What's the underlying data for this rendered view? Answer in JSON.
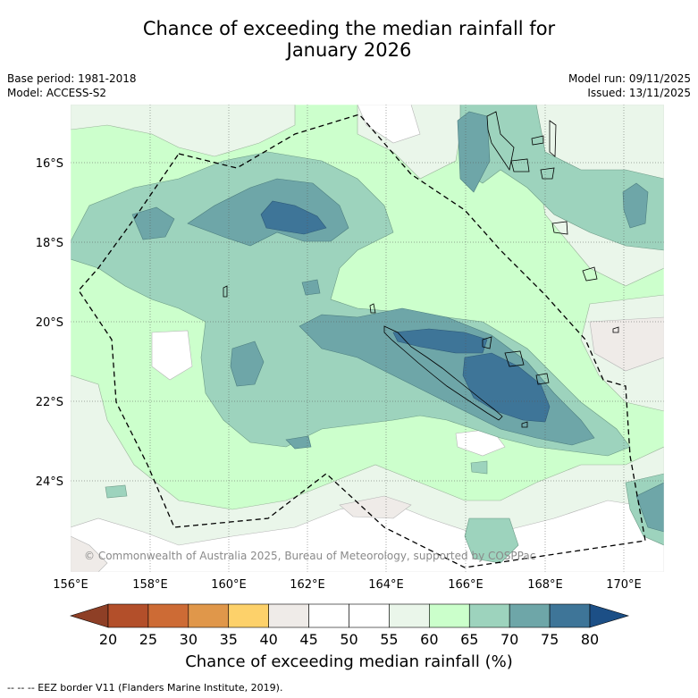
{
  "title_line1": "Chance of exceeding the median rainfall for",
  "title_line2": "January 2026",
  "left_meta": {
    "base_period": "Base period: 1981-2018",
    "model": "Model: ACCESS-S2"
  },
  "right_meta": {
    "model_run": "Model run: 09/11/2025",
    "issued": "Issued: 13/11/2025"
  },
  "credit": "© Commonwealth of Australia 2025, Bureau of Meteorology, supported by COSPPac",
  "lat_labels": [
    "16°S",
    "18°S",
    "20°S",
    "22°S",
    "24°S"
  ],
  "lon_labels": [
    "156°E",
    "158°E",
    "160°E",
    "162°E",
    "164°E",
    "166°E",
    "168°E",
    "170°E"
  ],
  "colorbar": {
    "label": "Chance of exceeding median rainfall (%)",
    "ticks": [
      "20",
      "25",
      "30",
      "35",
      "40",
      "45",
      "50",
      "55",
      "60",
      "65",
      "70",
      "75",
      "80"
    ],
    "colors": [
      "#8e3f26",
      "#b34f2a",
      "#cd6b35",
      "#e0974a",
      "#fdd16a",
      "#efebe8",
      "#ffffff",
      "#ffffff",
      "#eaf6ea",
      "#cbffcb",
      "#9dd3bd",
      "#6ea6a8",
      "#3e7598",
      "#1c4f86"
    ]
  },
  "legend_note": "--  --  -- EEZ border V11 (Flanders Marine Institute, 2019)."
}
